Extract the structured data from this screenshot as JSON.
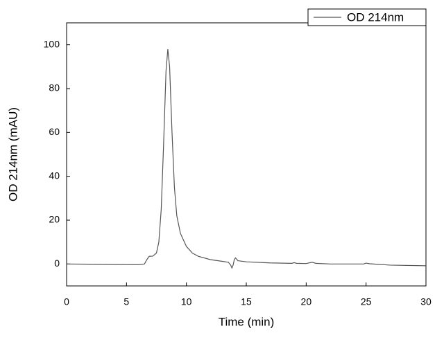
{
  "chart_data": {
    "type": "line",
    "x_label": "Time (min)",
    "y_label": "OD 214nm (mAU)",
    "x": [
      0,
      2,
      4,
      6,
      6.5,
      6.7,
      6.9,
      7.2,
      7.5,
      7.7,
      7.9,
      8.1,
      8.3,
      8.45,
      8.6,
      8.8,
      9.0,
      9.2,
      9.5,
      10,
      10.5,
      11,
      12,
      13,
      13.5,
      13.7,
      13.8,
      13.9,
      14.0,
      14.1,
      14.3,
      15,
      17,
      18.8,
      19,
      19.2,
      20,
      20.5,
      20.8,
      22,
      24.8,
      25,
      25.3,
      27,
      30
    ],
    "series": [
      {
        "name": "OD 214nm",
        "color": "#555555",
        "values": [
          0,
          -0.1,
          -0.2,
          -0.3,
          0,
          2,
          3.5,
          3.6,
          5,
          10,
          25,
          55,
          88,
          98,
          90,
          60,
          35,
          22,
          14,
          8,
          5,
          3.5,
          2,
          1.2,
          0.8,
          -0.5,
          -1.8,
          -0.5,
          2,
          2.8,
          1.5,
          1,
          0.5,
          0.3,
          0.6,
          0.3,
          0.2,
          0.8,
          0.3,
          0,
          0,
          0.4,
          0.1,
          -0.5,
          -0.8
        ]
      }
    ],
    "xlim": [
      0,
      30
    ],
    "xticks": [
      0,
      5,
      10,
      15,
      20,
      25,
      30
    ],
    "ylim": [
      -10,
      110
    ],
    "yticks": [
      0,
      20,
      40,
      60,
      80,
      100
    ],
    "grid": false,
    "legend": "upper-right"
  }
}
